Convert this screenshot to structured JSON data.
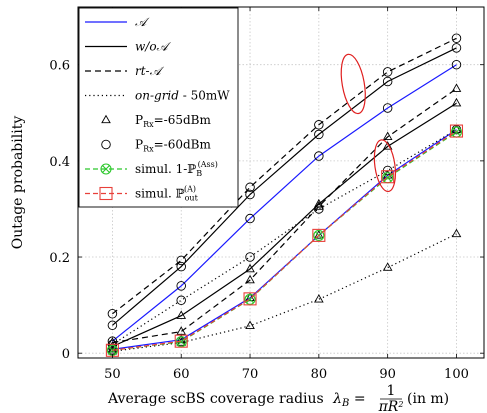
{
  "chart_data": {
    "type": "line",
    "xlabel": "Average scBS coverage radius",
    "xlabel_math": "λ",
    "xlabel_math_sub": "B",
    "xlabel_math_eq": " = ",
    "xlabel_frac_num": "1",
    "xlabel_frac_den": "πR",
    "xlabel_frac_den_sup": "2",
    "xlabel_units": "(in m)",
    "ylabel": "Outage probability",
    "xlim": [
      45,
      104
    ],
    "ylim": [
      -0.01,
      0.72
    ],
    "x_ticks": [
      50,
      60,
      70,
      80,
      90,
      100
    ],
    "y_ticks": [
      0,
      0.2,
      0.4,
      0.6
    ],
    "y_tick_labels": [
      "0",
      "0.2",
      "0.4",
      "0.6"
    ],
    "grid": true,
    "legend_position": "top-left",
    "x": [
      50,
      60,
      70,
      80,
      90,
      100
    ],
    "series": [
      {
        "id": "A_60",
        "style": "blue",
        "marker": "circle",
        "values": [
          0.025,
          0.14,
          0.28,
          0.41,
          0.51,
          0.6
        ]
      },
      {
        "id": "A_65",
        "style": "blue",
        "marker": "triangle",
        "values": [
          0.008,
          0.028,
          0.115,
          0.245,
          0.37,
          0.465
        ]
      },
      {
        "id": "woA_60",
        "style": "black-solid",
        "marker": "circle",
        "values": [
          0.058,
          0.18,
          0.33,
          0.455,
          0.565,
          0.635
        ]
      },
      {
        "id": "woA_65",
        "style": "black-solid",
        "marker": "triangle",
        "values": [
          0.014,
          0.078,
          0.175,
          0.31,
          0.43,
          0.52
        ]
      },
      {
        "id": "rtA_60",
        "style": "black-dashed",
        "marker": "circle",
        "values": [
          0.082,
          0.193,
          0.345,
          0.475,
          0.585,
          0.655
        ]
      },
      {
        "id": "rtA_65",
        "style": "black-dashed",
        "marker": "triangle",
        "values": [
          0.022,
          0.045,
          0.152,
          0.305,
          0.45,
          0.55
        ]
      },
      {
        "id": "grid_60",
        "style": "dotted",
        "marker": "circle",
        "values": [
          0.018,
          0.11,
          0.2,
          0.3,
          0.38,
          0.465
        ]
      },
      {
        "id": "grid_65",
        "style": "dotted",
        "marker": "triangle",
        "values": [
          0.004,
          0.022,
          0.057,
          0.112,
          0.178,
          0.248
        ]
      },
      {
        "id": "sim_ass",
        "style": "green",
        "marker": "circle-x",
        "values": [
          0.006,
          0.024,
          0.112,
          0.245,
          0.365,
          0.46
        ]
      },
      {
        "id": "sim_out",
        "style": "red",
        "marker": "square",
        "values": [
          0.006,
          0.025,
          0.113,
          0.245,
          0.367,
          0.462
        ]
      }
    ],
    "legend": [
      {
        "label": "𝒜",
        "line": "blue"
      },
      {
        "label": "w/o𝒜",
        "line": "black-solid"
      },
      {
        "label": "rt-𝒜",
        "line": "black-dashed"
      },
      {
        "label": "on-grid",
        "suffix": " - 50mW",
        "line": "dotted"
      },
      {
        "label": "P",
        "sub": "Rx",
        "suffix": "=-65dBm",
        "marker": "triangle"
      },
      {
        "label": "P",
        "sub": "Rx",
        "suffix": "=-60dBm",
        "marker": "circle"
      },
      {
        "label": "simul. 1-ℙ",
        "sub": "B",
        "sup": "(Ass)",
        "marker": "circle-x",
        "line": "green-dashed"
      },
      {
        "label": "simul. ℙ",
        "sub": "out",
        "sup": "(A)",
        "marker": "square",
        "line": "red-dashed"
      }
    ],
    "colors": {
      "blue": "#1a1aff",
      "black": "#000000",
      "green": "#2cc82c",
      "red": "#e8403a",
      "grid": "#c8c8c8"
    },
    "annotations": [
      {
        "shape": "ellipse",
        "color": "#e02020",
        "center": [
          85,
          0.56
        ]
      },
      {
        "shape": "ellipse",
        "color": "#e02020",
        "center": [
          89.6,
          0.39
        ]
      }
    ]
  }
}
